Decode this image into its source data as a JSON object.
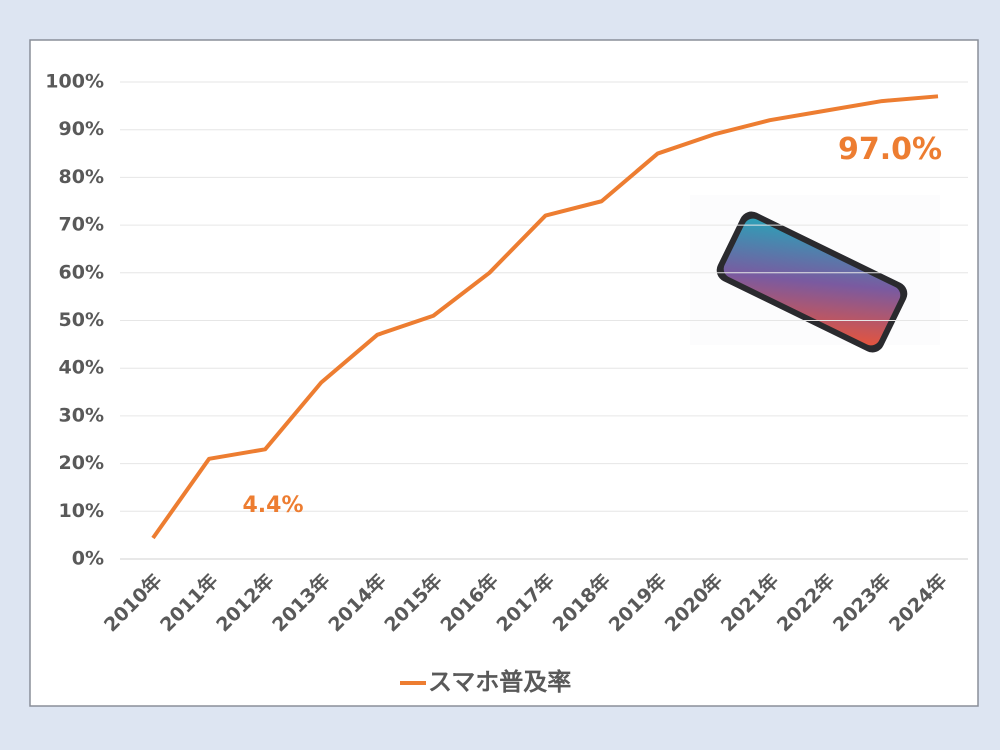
{
  "chart_data": {
    "type": "line",
    "categories": [
      "2010年",
      "2011年",
      "2012年",
      "2013年",
      "2014年",
      "2015年",
      "2016年",
      "2017年",
      "2018年",
      "2019年",
      "2020年",
      "2021年",
      "2022年",
      "2023年",
      "2024年"
    ],
    "series": [
      {
        "name": "スマホ普及率",
        "color": "#ed7d31",
        "values": [
          4.4,
          21,
          23,
          37,
          47,
          51,
          60,
          72,
          75,
          85,
          89,
          92,
          94,
          96,
          97
        ],
        "value_labels": [
          "4.4%",
          null,
          null,
          null,
          null,
          null,
          null,
          null,
          null,
          null,
          null,
          null,
          null,
          null,
          "97.0%"
        ]
      }
    ],
    "ylim": [
      0,
      100
    ],
    "yticks": [
      {
        "value": 0,
        "label": "0%"
      },
      {
        "value": 10,
        "label": "10%"
      },
      {
        "value": 20,
        "label": "20%"
      },
      {
        "value": 30,
        "label": "30%"
      },
      {
        "value": 40,
        "label": "40%"
      },
      {
        "value": 50,
        "label": "50%"
      },
      {
        "value": 60,
        "label": "60%"
      },
      {
        "value": 70,
        "label": "70%"
      },
      {
        "value": 80,
        "label": "80%"
      },
      {
        "value": 90,
        "label": "90%"
      },
      {
        "value": 100,
        "label": "100%"
      }
    ],
    "grid": true,
    "legend": "bottom"
  }
}
